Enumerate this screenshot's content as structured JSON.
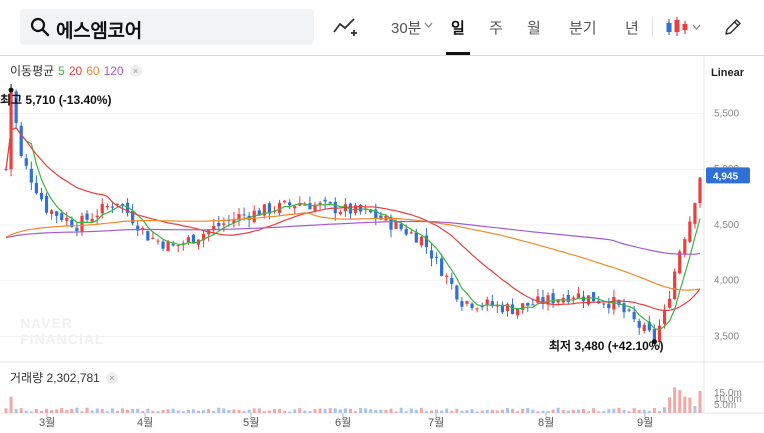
{
  "search": {
    "query": "에스엠코어"
  },
  "toolbar": {
    "periods": [
      "30분",
      "일",
      "주",
      "월",
      "분기",
      "년"
    ],
    "active_period": "일"
  },
  "indicators": {
    "label": "이동평균",
    "ma": [
      {
        "period": "5",
        "color": "#3cb53c"
      },
      {
        "period": "20",
        "color": "#e84040"
      },
      {
        "period": "60",
        "color": "#f08a2a"
      },
      {
        "period": "120",
        "color": "#a45ccf"
      }
    ],
    "close_icon": "×"
  },
  "scale": {
    "label": "Linear"
  },
  "volume": {
    "label": "거래량 2,302,781",
    "close_icon": "×",
    "ticks": [
      "15.0m",
      "10.0m",
      "5.0m"
    ]
  },
  "watermark": [
    "NAVER",
    "FINANCIAL"
  ],
  "chart_data": {
    "type": "candlestick",
    "title": "에스엠코어",
    "y_ticks": [
      3500,
      4000,
      4500,
      5000,
      5500
    ],
    "y_tick_labels": [
      "3,500",
      "4,000",
      "4,500",
      "5,000",
      "5,500"
    ],
    "ylim": [
      3280,
      5890
    ],
    "x_months": [
      "3월",
      "4월",
      "5월",
      "6월",
      "7월",
      "8월",
      "9월"
    ],
    "high_label": "최고 5,710 (-13.40%)",
    "low_label": "최저 3,480 (+42.10%)",
    "current_price_label": "4,945",
    "current_price": 4945,
    "high": 5710,
    "low": 3480,
    "up_color": "#e84040",
    "down_color": "#2f6fd6",
    "ma_colors": {
      "ma5": "#3cb53c",
      "ma20": "#e84040",
      "ma60": "#f08a2a",
      "ma120": "#a45ccf"
    }
  }
}
